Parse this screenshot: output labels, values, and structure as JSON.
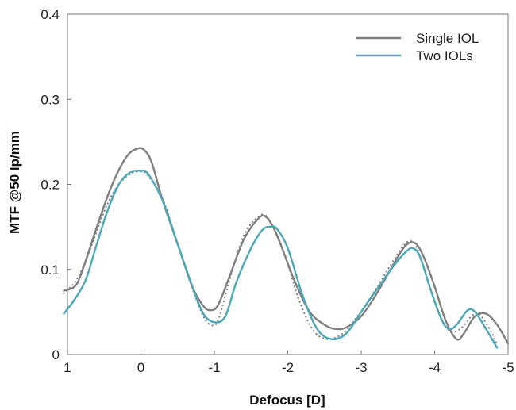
{
  "chart_data": {
    "type": "line",
    "xlabel": "Defocus [D]",
    "ylabel": "MTF @50 lp/mm",
    "xlim": [
      1,
      -5
    ],
    "ylim": [
      0,
      0.4
    ],
    "x_ticks": [
      1,
      0,
      -1,
      -2,
      -3,
      -4,
      -5
    ],
    "x_tick_labels": [
      "1",
      "0",
      "-1",
      "-2",
      "-3",
      "-4",
      "-5"
    ],
    "y_ticks": [
      0,
      0.1,
      0.2,
      0.3,
      0.4
    ],
    "y_tick_labels": [
      "0",
      "0.1",
      "0.2",
      "0.3",
      "0.4"
    ],
    "grid": false,
    "legend_position": "top-right",
    "series": [
      {
        "name": "Single IOL",
        "color": "#808080",
        "style": "solid",
        "x": [
          1.05,
          0.9,
          0.8,
          0.6,
          0.4,
          0.2,
          0.05,
          -0.05,
          -0.15,
          -0.3,
          -0.5,
          -0.7,
          -0.85,
          -0.95,
          -1.05,
          -1.2,
          -1.4,
          -1.6,
          -1.7,
          -1.8,
          -1.9,
          -2.1,
          -2.3,
          -2.5,
          -2.65,
          -2.8,
          -3.0,
          -3.2,
          -3.4,
          -3.55,
          -3.65,
          -3.75,
          -3.85,
          -4.0,
          -4.15,
          -4.3,
          -4.4,
          -4.55,
          -4.7,
          -4.85,
          -5.0
        ],
        "y": [
          0.075,
          0.08,
          0.098,
          0.15,
          0.198,
          0.232,
          0.242,
          0.24,
          0.225,
          0.18,
          0.13,
          0.08,
          0.057,
          0.052,
          0.058,
          0.09,
          0.135,
          0.16,
          0.162,
          0.15,
          0.13,
          0.085,
          0.05,
          0.035,
          0.03,
          0.032,
          0.045,
          0.07,
          0.1,
          0.122,
          0.131,
          0.13,
          0.115,
          0.08,
          0.04,
          0.018,
          0.025,
          0.045,
          0.048,
          0.035,
          0.013
        ]
      },
      {
        "name": "Two IOLs",
        "color": "#4aa8b8",
        "style": "solid",
        "x": [
          1.05,
          0.9,
          0.75,
          0.6,
          0.45,
          0.3,
          0.15,
          0.0,
          -0.1,
          -0.3,
          -0.5,
          -0.7,
          -0.85,
          -1.0,
          -1.15,
          -1.3,
          -1.5,
          -1.65,
          -1.75,
          -1.85,
          -2.0,
          -2.2,
          -2.4,
          -2.6,
          -2.8,
          -3.0,
          -3.2,
          -3.45,
          -3.6,
          -3.7,
          -3.8,
          -3.95,
          -4.1,
          -4.2,
          -4.3,
          -4.45,
          -4.55,
          -4.7,
          -4.85
        ],
        "y": [
          0.048,
          0.065,
          0.088,
          0.13,
          0.17,
          0.2,
          0.214,
          0.216,
          0.212,
          0.18,
          0.13,
          0.08,
          0.048,
          0.038,
          0.045,
          0.085,
          0.125,
          0.146,
          0.15,
          0.148,
          0.125,
          0.07,
          0.03,
          0.018,
          0.025,
          0.05,
          0.075,
          0.105,
          0.12,
          0.125,
          0.115,
          0.075,
          0.04,
          0.03,
          0.035,
          0.052,
          0.05,
          0.03,
          0.008
        ]
      },
      {
        "name": "",
        "color": "#808080",
        "style": "dotted",
        "x": [
          1.05,
          0.9,
          0.75,
          0.6,
          0.45,
          0.3,
          0.15,
          0.0,
          -0.1,
          -0.3,
          -0.5,
          -0.7,
          -0.85,
          -0.95,
          -1.05,
          -1.2,
          -1.4,
          -1.6,
          -1.7,
          -1.8,
          -1.95,
          -2.15,
          -2.35,
          -2.55,
          -2.75,
          -2.95,
          -3.15,
          -3.4,
          -3.55,
          -3.65,
          -3.75,
          -3.9,
          -4.05,
          -4.2,
          -4.35,
          -4.5,
          -4.6,
          -4.75,
          -4.85
        ],
        "y": [
          0.072,
          0.085,
          0.11,
          0.145,
          0.178,
          0.2,
          0.212,
          0.215,
          0.21,
          0.182,
          0.13,
          0.078,
          0.045,
          0.035,
          0.04,
          0.085,
          0.14,
          0.162,
          0.163,
          0.15,
          0.12,
          0.065,
          0.028,
          0.018,
          0.025,
          0.045,
          0.07,
          0.105,
          0.125,
          0.133,
          0.127,
          0.09,
          0.05,
          0.028,
          0.03,
          0.045,
          0.048,
          0.03,
          0.012
        ]
      }
    ]
  }
}
